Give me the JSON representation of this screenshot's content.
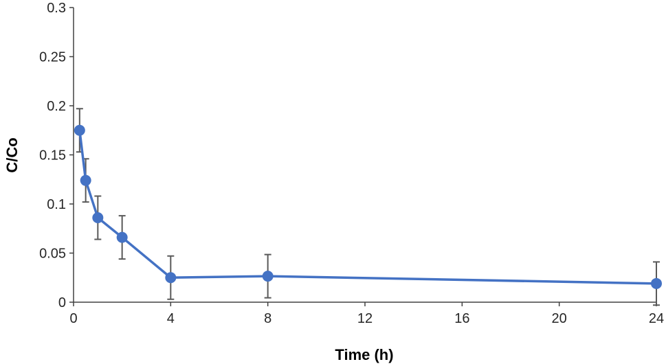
{
  "chart_data": {
    "type": "line",
    "title": "",
    "xlabel": "Time (h)",
    "ylabel": "C/Co",
    "xlim": [
      0,
      24
    ],
    "ylim": [
      0,
      0.3
    ],
    "x_ticks": [
      0,
      4,
      8,
      12,
      16,
      20,
      24
    ],
    "x_tick_labels": [
      "0",
      "4",
      "8",
      "12",
      "16",
      "20",
      "24"
    ],
    "y_ticks": [
      0,
      0.05,
      0.1,
      0.15,
      0.2,
      0.25,
      0.3
    ],
    "y_tick_labels": [
      "0",
      "0.05",
      "0.1",
      "0.15",
      "0.2",
      "0.25",
      "0.3"
    ],
    "grid": false,
    "legend": "none",
    "series": [
      {
        "color": "#4472C4",
        "error_color": "#595959",
        "points": [
          {
            "x": 0.25,
            "y": 0.175,
            "err": 0.022
          },
          {
            "x": 0.5,
            "y": 0.124,
            "err": 0.022
          },
          {
            "x": 1,
            "y": 0.086,
            "err": 0.022
          },
          {
            "x": 2,
            "y": 0.066,
            "err": 0.022
          },
          {
            "x": 4,
            "y": 0.025,
            "err": 0.022
          },
          {
            "x": 8,
            "y": 0.0265,
            "err": 0.022
          },
          {
            "x": 24,
            "y": 0.019,
            "err": 0.022
          }
        ]
      }
    ]
  }
}
